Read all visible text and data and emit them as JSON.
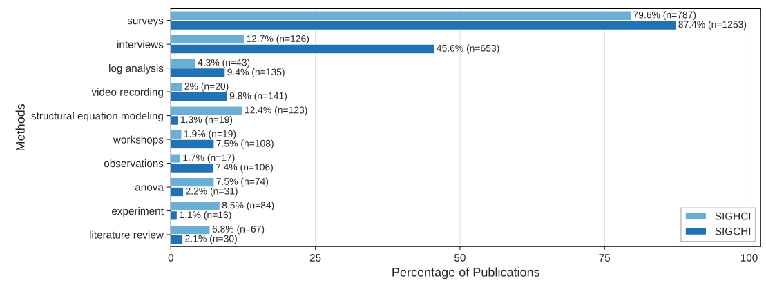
{
  "chart_data": {
    "type": "bar",
    "orientation": "horizontal",
    "xlabel": "Percentage of Publications",
    "ylabel": "Methods",
    "categories": [
      "surveys",
      "interviews",
      "log analysis",
      "video recording",
      "structural equation modeling",
      "workshops",
      "observations",
      "anova",
      "experiment",
      "literature review"
    ],
    "series": [
      {
        "name": "SIGHCI",
        "color": "#6baed6",
        "values": [
          79.6,
          12.7,
          4.3,
          2,
          12.4,
          1.9,
          1.7,
          7.5,
          8.5,
          6.8
        ],
        "value_labels": [
          "79.6% (n=787)",
          "12.7% (n=126)",
          "4.3% (n=43)",
          "2% (n=20)",
          "12.4% (n=123)",
          "1.9% (n=19)",
          "1.7% (n=17)",
          "7.5% (n=74)",
          "8.5% (n=84)",
          "6.8% (n=67)"
        ]
      },
      {
        "name": "SIGCHI",
        "color": "#2171b5",
        "values": [
          87.4,
          45.6,
          9.4,
          9.8,
          1.3,
          7.5,
          7.4,
          2.2,
          1.1,
          2.1
        ],
        "value_labels": [
          "87.4% (n=1253)",
          "45.6% (n=653)",
          "9.4% (n=135)",
          "9.8% (n=141)",
          "1.3% (n=19)",
          "7.5% (n=108)",
          "7.4% (n=106)",
          "2.2% (n=31)",
          "1.1% (n=16)",
          "2.1% (n=30)"
        ]
      }
    ],
    "xlim": [
      0,
      102
    ],
    "xticks": [
      0,
      25,
      50,
      75,
      100
    ],
    "grid": "x",
    "legend": "bottom right"
  }
}
